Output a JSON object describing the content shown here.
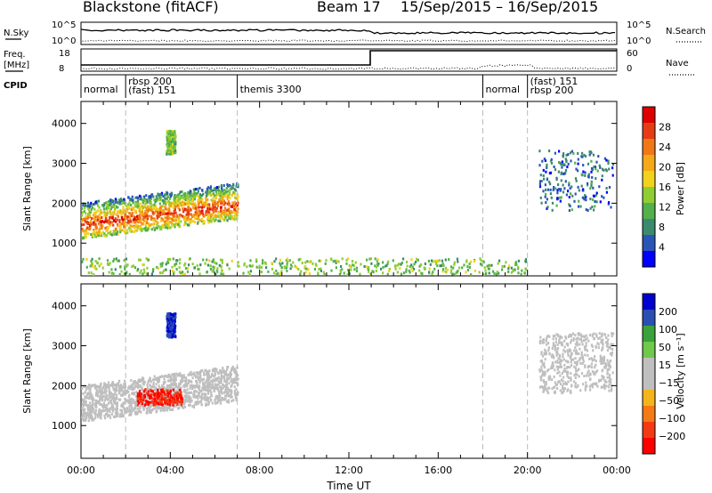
{
  "header": {
    "radar": "Blackstone (fitACF)",
    "beam": "Beam 17",
    "period": "15/Sep/2015 – 16/Sep/2015"
  },
  "strip_labels": {
    "nsky": "N.Sky",
    "nsky_ticks": [
      "10^5",
      "10^0"
    ],
    "nsearch": "N.Search",
    "nsearch_ticks": [
      "10^5",
      "10^0"
    ],
    "freq": "Freq.",
    "freq_unit": "[MHz]",
    "freq_ticks": [
      "18",
      "8"
    ],
    "nave": "Nave",
    "nave_ticks": [
      "60",
      "0"
    ],
    "cpid": "CPID"
  },
  "cpid_segments": [
    {
      "label": "normal",
      "start_h": 0.0
    },
    {
      "label": "rbsp 200",
      "start_h": 2.0,
      "line2": "(fast) 151"
    },
    {
      "label": "themis 3300",
      "start_h": 7.0
    },
    {
      "label": "normal",
      "start_h": 18.0
    },
    {
      "label": "(fast) 151",
      "start_h": 20.0,
      "line2": "rbsp 200"
    }
  ],
  "colors": {
    "power_scale": [
      "#0000ff",
      "#2a55b8",
      "#3c8a6e",
      "#53b04a",
      "#8fce33",
      "#f2d21c",
      "#f5a818",
      "#f07816",
      "#e63c14",
      "#dd0000"
    ],
    "velocity_scale": [
      "#ff0000",
      "#f43a12",
      "#f57a16",
      "#f5b41c",
      "#bfbfbf",
      "#bfbfbf",
      "#6fc94a",
      "#3aa23a",
      "#2a4fb3",
      "#0000d0"
    ],
    "dashed": "#bbbbbb"
  },
  "chart_data": [
    {
      "type": "heatmap",
      "title": "",
      "xlabel": "",
      "ylabel": "Slant Range [km]",
      "x_ticks": [],
      "xlim_hours": [
        0,
        24
      ],
      "y_ticks": [
        "1000",
        "2000",
        "3000",
        "4000"
      ],
      "ylim_km": [
        180,
        4550
      ],
      "colorbar": {
        "label": "Power [dB]",
        "ticks": [
          "4",
          "8",
          "12",
          "16",
          "20",
          "24",
          "28"
        ],
        "range": [
          0,
          30
        ]
      },
      "echo_regions": [
        {
          "t": [
            0.0,
            7.0
          ],
          "range_km": [
            1100,
            2600
          ],
          "peak_km": 1500,
          "value": 18
        },
        {
          "t": [
            3.8,
            4.2
          ],
          "range_km": [
            3200,
            3800
          ],
          "value": 12
        },
        {
          "t": [
            20.5,
            23.8
          ],
          "range_km": [
            1800,
            3300
          ],
          "value": 6
        },
        {
          "t": [
            0.0,
            20.0
          ],
          "range_km": [
            200,
            600
          ],
          "value": 12
        }
      ]
    },
    {
      "type": "heatmap",
      "title": "",
      "xlabel": "Time UT",
      "ylabel": "Slant Range [km]",
      "x_ticks": [
        "00:00",
        "04:00",
        "08:00",
        "12:00",
        "16:00",
        "20:00",
        "00:00"
      ],
      "xlim_hours": [
        0,
        24
      ],
      "y_ticks": [
        "1000",
        "2000",
        "3000",
        "4000"
      ],
      "ylim_km": [
        180,
        4550
      ],
      "colorbar": {
        "label": "Velocity [m s⁻¹]",
        "ticks": [
          "200",
          "100",
          "50",
          "15",
          "−15",
          "−50",
          "−100",
          "−200"
        ],
        "range": [
          -250,
          250
        ]
      },
      "echo_regions": [
        {
          "t": [
            0.0,
            7.0
          ],
          "range_km": [
            1100,
            2600
          ],
          "value": 0
        },
        {
          "t": [
            2.5,
            4.5
          ],
          "range_km": [
            1500,
            1900
          ],
          "value": -200
        },
        {
          "t": [
            3.8,
            4.2
          ],
          "range_km": [
            3200,
            3800
          ],
          "value": 200
        },
        {
          "t": [
            20.5,
            23.8
          ],
          "range_km": [
            1800,
            3300
          ],
          "value": -20
        }
      ]
    }
  ]
}
